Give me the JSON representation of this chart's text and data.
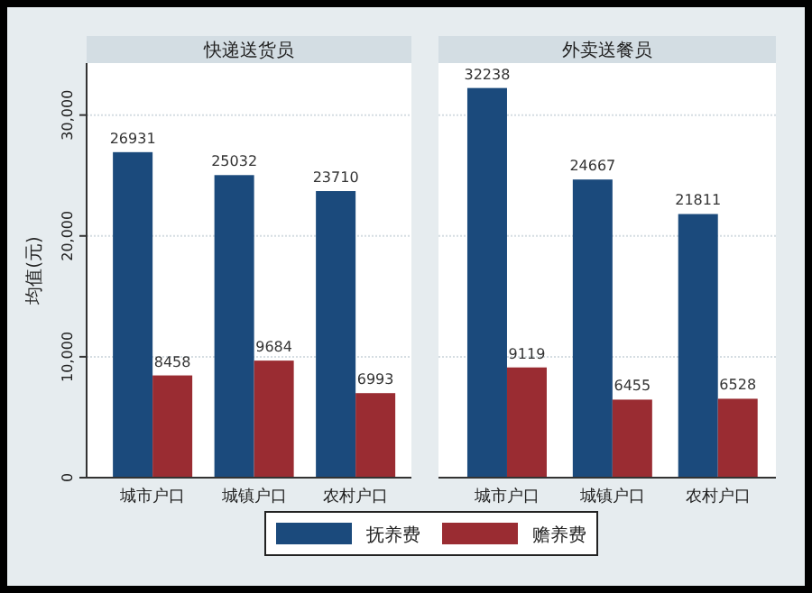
{
  "chart_data": [
    {
      "type": "bar",
      "title": "快递送货员",
      "ylabel": "均值(元)",
      "categories": [
        "城市户口",
        "城镇户口",
        "农村户口"
      ],
      "series": [
        {
          "name": "抚养费",
          "color": "#1b4a7c",
          "values": [
            26931,
            25032,
            23710
          ]
        },
        {
          "name": "赡养费",
          "color": "#9a2c32",
          "values": [
            8458,
            9684,
            6993
          ]
        }
      ],
      "ylim": [
        0,
        34300
      ],
      "yticks": [
        0,
        {
          "value": 10000,
          "label": "10,000"
        },
        {
          "value": 20000,
          "label": "20,000"
        },
        {
          "value": 30000,
          "label": "30,000"
        }
      ],
      "grid": "y",
      "data_labels": true,
      "legend": "bottom"
    },
    {
      "type": "bar",
      "title": "外卖送餐员",
      "categories": [
        "城市户口",
        "城镇户口",
        "农村户口"
      ],
      "series": [
        {
          "color": "#1b4a7c",
          "values": [
            32238,
            24667,
            21811
          ]
        },
        {
          "color": "#9a2c32",
          "values": [
            9119,
            6455,
            6528
          ]
        }
      ],
      "ylim": [
        0,
        34300
      ],
      "yticks": [
        0,
        10000,
        20000,
        30000
      ],
      "grid": "y",
      "data_labels": true,
      "tick_labels": "x"
    }
  ]
}
